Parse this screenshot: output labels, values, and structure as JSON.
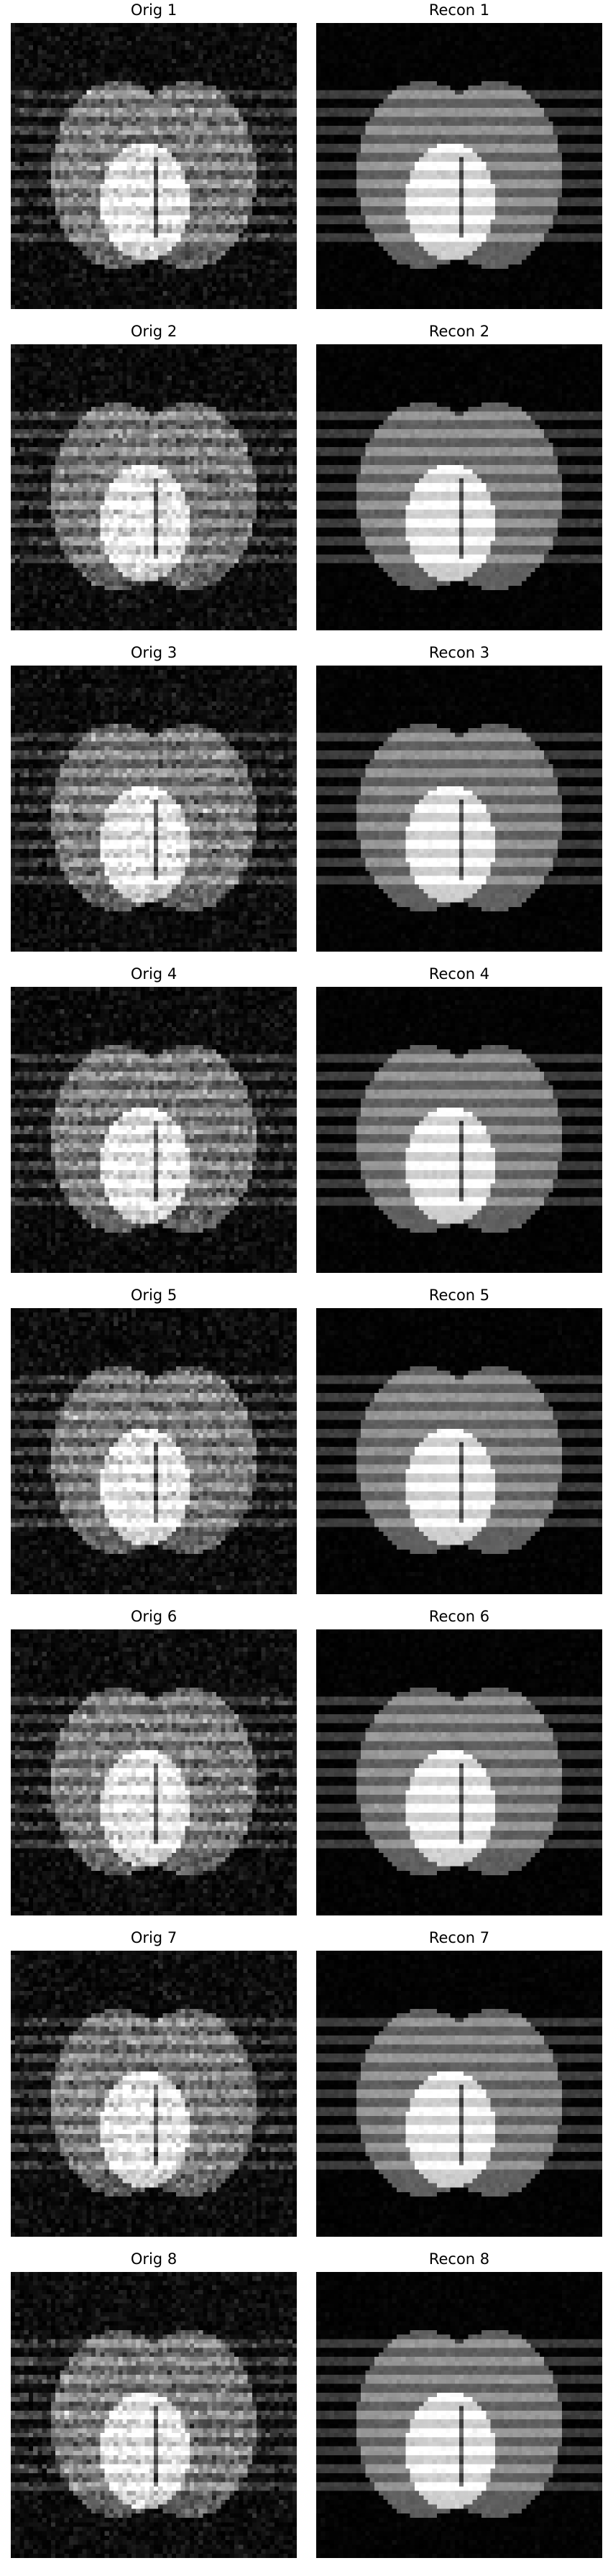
{
  "figure": {
    "background_color": "#ffffff",
    "title_color": "#000000",
    "rows": [
      {
        "left": {
          "title": "Orig 1",
          "kind": "orig"
        },
        "right": {
          "title": "Recon 1",
          "kind": "recon"
        }
      },
      {
        "left": {
          "title": "Orig 2",
          "kind": "orig"
        },
        "right": {
          "title": "Recon 2",
          "kind": "recon"
        }
      },
      {
        "left": {
          "title": "Orig 3",
          "kind": "orig"
        },
        "right": {
          "title": "Recon 3",
          "kind": "recon"
        }
      },
      {
        "left": {
          "title": "Orig 4",
          "kind": "orig"
        },
        "right": {
          "title": "Recon 4",
          "kind": "recon"
        }
      },
      {
        "left": {
          "title": "Orig 5",
          "kind": "orig"
        },
        "right": {
          "title": "Recon 5",
          "kind": "recon"
        }
      },
      {
        "left": {
          "title": "Orig 6",
          "kind": "orig"
        },
        "right": {
          "title": "Recon 6",
          "kind": "recon"
        }
      },
      {
        "left": {
          "title": "Orig 7",
          "kind": "orig"
        },
        "right": {
          "title": "Recon 7",
          "kind": "recon"
        }
      },
      {
        "left": {
          "title": "Orig 8",
          "kind": "orig"
        },
        "right": {
          "title": "Recon 8",
          "kind": "recon"
        }
      }
    ]
  }
}
